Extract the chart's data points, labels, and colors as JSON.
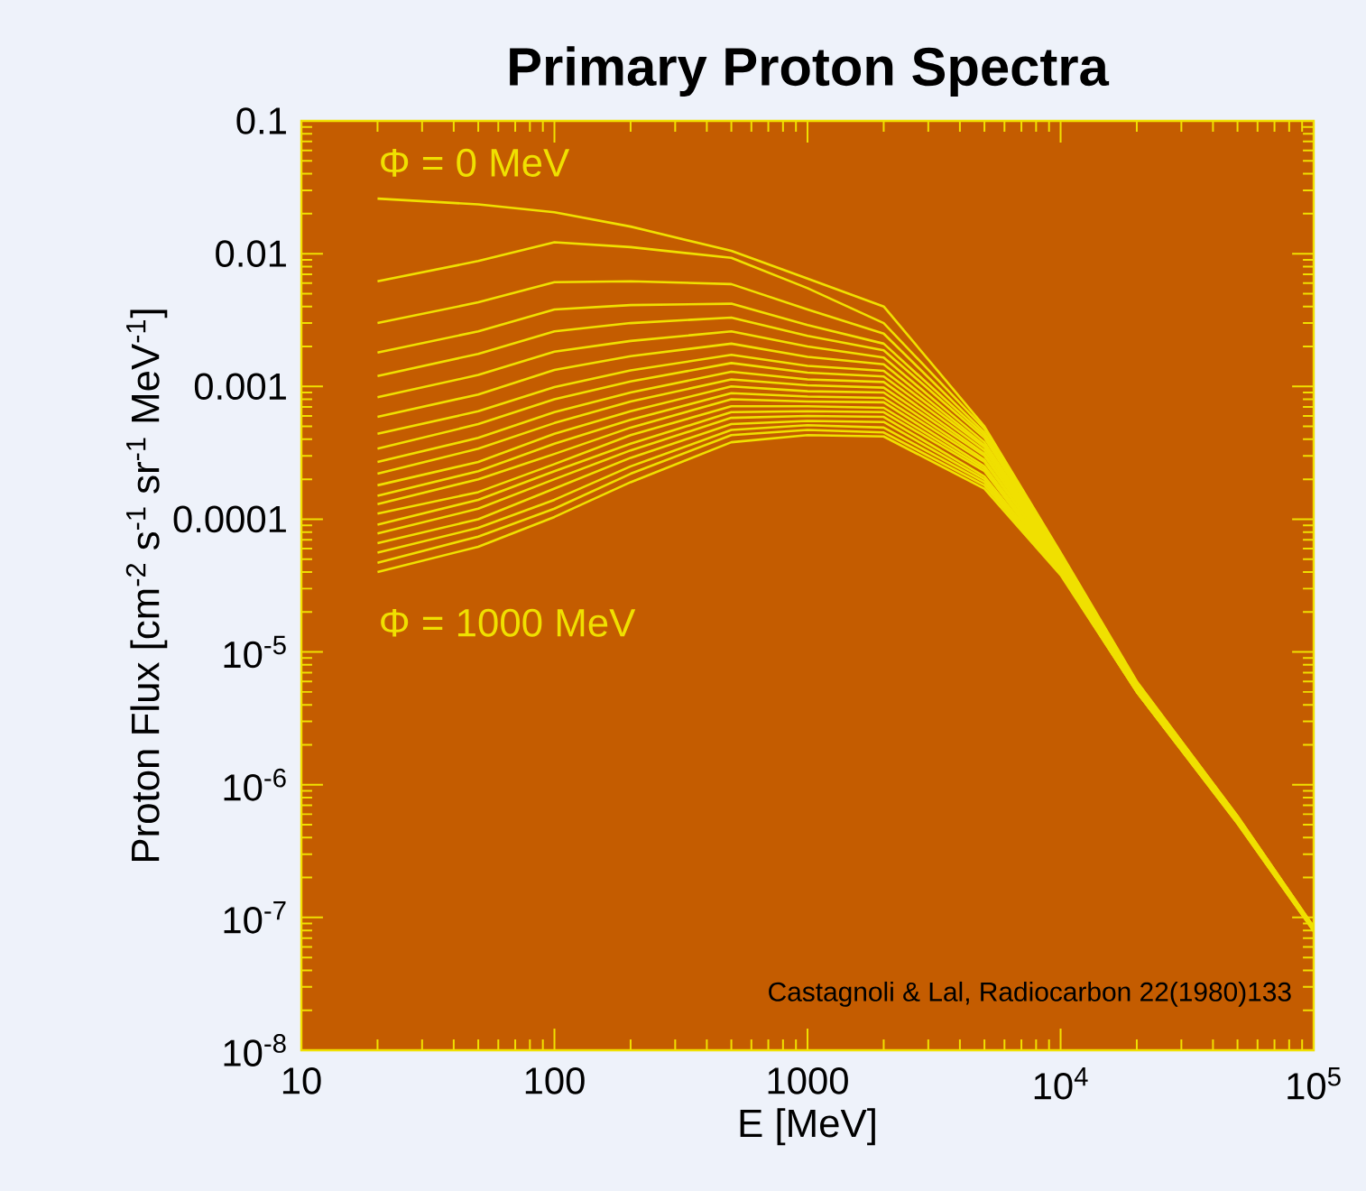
{
  "chart_data": {
    "type": "line",
    "title": "Primary Proton Spectra",
    "xlabel": "E [MeV]",
    "ylabel": "Proton Flux  [cm$^{-2}$ s$^{-1}$ sr$^{-1}$ MeV$^{-1}$]",
    "log": "xy",
    "marker": "none",
    "line_style": "solid",
    "xlim": [
      10,
      100000
    ],
    "ylim": [
      1e-08,
      0.1
    ],
    "xticks": [
      10,
      100,
      1000,
      {
        "value": 10000,
        "label": "10$^{4}$"
      },
      {
        "value": 100000,
        "label": "10$^{5}$"
      }
    ],
    "yticks": [
      {
        "value": 1e-08,
        "label": "10$^{-8}$"
      },
      {
        "value": 1e-07,
        "label": "10$^{-7}$"
      },
      {
        "value": 1e-06,
        "label": "10$^{-6}$"
      },
      {
        "value": 1e-05,
        "label": "10$^{-5}$"
      },
      0.0001,
      0.001,
      0.01,
      0.1
    ],
    "x": [
      20,
      50,
      100,
      200,
      500,
      1000,
      2000,
      5000,
      10000,
      20000,
      50000,
      100000
    ],
    "annotations": [
      "Φ = 0 MeV",
      "Φ = 1000 MeV",
      "Castagnoli & Lal, Radiocarbon 22(1980)133"
    ],
    "series": [
      {
        "color": "#f0e000",
        "values": [
          0.026,
          0.0235,
          0.0205,
          0.016,
          0.0105,
          0.0065,
          0.004,
          0.0005,
          5.6e-05,
          6e-06,
          5.8e-07,
          8.5e-08
        ]
      },
      {
        "color": "#f0e000",
        "values": [
          0.0062,
          0.0088,
          0.0122,
          0.0112,
          0.0093,
          0.0055,
          0.003,
          0.00048,
          5.5e-05,
          5.9e-06,
          5.8e-07,
          8.5e-08
        ]
      },
      {
        "color": "#f0e000",
        "values": [
          0.003,
          0.0043,
          0.0061,
          0.0062,
          0.0059,
          0.0038,
          0.0025,
          0.00045,
          5.4e-05,
          5.9e-06,
          5.7e-07,
          8.4e-08
        ]
      },
      {
        "color": "#f0e000",
        "values": [
          0.0018,
          0.0026,
          0.0038,
          0.0041,
          0.0042,
          0.0029,
          0.0021,
          0.00043,
          5.3e-05,
          5.8e-06,
          5.7e-07,
          8.4e-08
        ]
      },
      {
        "color": "#f0e000",
        "values": [
          0.0012,
          0.00176,
          0.0026,
          0.003,
          0.0033,
          0.0024,
          0.00187,
          0.00041,
          5.2e-05,
          5.7e-06,
          5.6e-07,
          8.4e-08
        ]
      },
      {
        "color": "#f0e000",
        "values": [
          0.00083,
          0.00122,
          0.00183,
          0.0022,
          0.0026,
          0.002,
          0.00165,
          0.00038,
          5.1e-05,
          5.7e-06,
          5.6e-07,
          8.3e-08
        ]
      },
      {
        "color": "#f0e000",
        "values": [
          0.00059,
          0.00087,
          0.00133,
          0.00169,
          0.0021,
          0.00167,
          0.00147,
          0.00036,
          5e-05,
          5.6e-06,
          5.5e-07,
          8.3e-08
        ]
      },
      {
        "color": "#f0e000",
        "values": [
          0.00044,
          0.00065,
          0.00099,
          0.00132,
          0.00173,
          0.00143,
          0.00131,
          0.00035,
          4.9e-05,
          5.5e-06,
          5.5e-07,
          8.3e-08
        ]
      },
      {
        "color": "#f0e000",
        "values": [
          0.00034,
          0.00052,
          0.0008,
          0.00109,
          0.0015,
          0.00127,
          0.00119,
          0.00033,
          4.8e-05,
          5.5e-06,
          5.5e-07,
          8.2e-08
        ]
      },
      {
        "color": "#f0e000",
        "values": [
          0.00027,
          0.00041,
          0.00064,
          0.0009,
          0.00129,
          0.00113,
          0.00108,
          0.00031,
          4.7e-05,
          5.4e-06,
          5.4e-07,
          8.2e-08
        ]
      },
      {
        "color": "#f0e000",
        "values": [
          0.00022,
          0.00034,
          0.00053,
          0.00077,
          0.00113,
          0.00102,
          0.00098,
          0.0003,
          4.6e-05,
          5.4e-06,
          5.4e-07,
          8.2e-08
        ]
      },
      {
        "color": "#f0e000",
        "values": [
          0.00018,
          0.00027,
          0.00044,
          0.00065,
          0.001,
          0.00092,
          0.0009,
          0.00028,
          4.5e-05,
          5.3e-06,
          5.4e-07,
          8.1e-08
        ]
      },
      {
        "color": "#f0e000",
        "values": [
          0.00015,
          0.00023,
          0.00037,
          0.00056,
          0.00089,
          0.00084,
          0.00082,
          0.00027,
          4.4e-05,
          5.3e-06,
          5.3e-07,
          8.1e-08
        ]
      },
      {
        "color": "#f0e000",
        "values": [
          0.00013,
          0.0002,
          0.00031,
          0.00049,
          0.0008,
          0.00077,
          0.00076,
          0.00025,
          4.3e-05,
          5.2e-06,
          5.3e-07,
          8.1e-08
        ]
      },
      {
        "color": "#f0e000",
        "values": [
          0.00011,
          0.00016,
          0.00026,
          0.00043,
          0.00071,
          0.00071,
          0.00069,
          0.00024,
          4.2e-05,
          5.2e-06,
          5.3e-07,
          8.1e-08
        ]
      },
      {
        "color": "#f0e000",
        "values": [
          9.1e-05,
          0.00014,
          0.00023,
          0.00037,
          0.00064,
          0.00065,
          0.00064,
          0.00023,
          4.1e-05,
          5.1e-06,
          5.2e-07,
          8e-08
        ]
      },
      {
        "color": "#f0e000",
        "values": [
          7.8e-05,
          0.00012,
          0.0002,
          0.00033,
          0.00058,
          0.0006,
          0.00059,
          0.00021,
          4.1e-05,
          5.1e-06,
          5.2e-07,
          8e-08
        ]
      },
      {
        "color": "#f0e000",
        "values": [
          6.6e-05,
          0.0001,
          0.00017,
          0.00029,
          0.00052,
          0.00055,
          0.00054,
          0.0002,
          4e-05,
          5.1e-06,
          5.2e-07,
          8e-08
        ]
      },
      {
        "color": "#f0e000",
        "values": [
          5.6e-05,
          8.6e-05,
          0.00014,
          0.00025,
          0.00047,
          0.00051,
          0.00049,
          0.00019,
          3.9e-05,
          5e-06,
          5.2e-07,
          8e-08
        ]
      },
      {
        "color": "#f0e000",
        "values": [
          4.7e-05,
          7.4e-05,
          0.00012,
          0.00022,
          0.00043,
          0.00047,
          0.00045,
          0.00018,
          3.9e-05,
          5e-06,
          5.1e-07,
          7.9e-08
        ]
      },
      {
        "color": "#f0e000",
        "values": [
          4e-05,
          6.2e-05,
          0.000104,
          0.00019,
          0.00038,
          0.00043,
          0.00042,
          0.00017,
          3.8e-05,
          5e-06,
          5.1e-07,
          7.9e-08
        ]
      }
    ]
  }
}
